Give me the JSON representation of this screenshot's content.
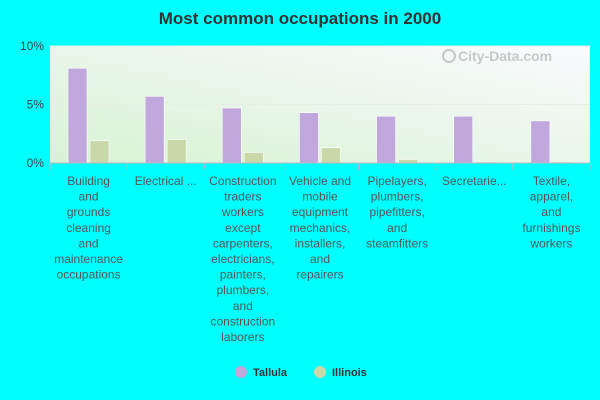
{
  "chart_data": {
    "type": "bar",
    "title": "Most common occupations in 2000",
    "categories": [
      "Building and grounds cleaning and maintenance occupations",
      "Electrical ...",
      "Construction traders workers except carpenters, electricians, painters, plumbers, and construction laborers",
      "Vehicle and mobile equipment mechanics, installers, and repairers",
      "Pipelayers, plumbers, pipefitters, and steamfitters",
      "Secretarie...",
      "Textile, apparel, and furnishings workers"
    ],
    "category_lines": [
      [
        "Building",
        "and",
        "grounds",
        "cleaning",
        "and",
        "maintenance",
        "occupations"
      ],
      [
        "Electrical ..."
      ],
      [
        "Construction",
        "traders",
        "workers",
        "except",
        "carpenters,",
        "electricians,",
        "painters,",
        "plumbers,",
        "and",
        "construction",
        "laborers"
      ],
      [
        "Vehicle and",
        "mobile",
        "equipment",
        "mechanics,",
        "installers,",
        "and",
        "repairers"
      ],
      [
        "Pipelayers,",
        "plumbers,",
        "pipefitters,",
        "and",
        "steamfitters"
      ],
      [
        "Secretarie..."
      ],
      [
        "Textile,",
        "apparel,",
        "and",
        "furnishings",
        "workers"
      ]
    ],
    "series": [
      {
        "name": "Tallula",
        "color": "#c0a8dc",
        "values": [
          8.1,
          5.7,
          4.7,
          4.3,
          4.0,
          4.0,
          3.6
        ]
      },
      {
        "name": "Illinois",
        "color": "#c8d8a8",
        "values": [
          1.9,
          2.0,
          0.9,
          1.3,
          0.3,
          0.1,
          0.1
        ]
      }
    ],
    "yticks": [
      {
        "value": 0,
        "label": "0%"
      },
      {
        "value": 5,
        "label": "5%"
      },
      {
        "value": 10,
        "label": "10%"
      }
    ],
    "ylim": [
      0,
      10
    ],
    "legend_position": "bottom-center",
    "watermark": "City-Data.com"
  }
}
